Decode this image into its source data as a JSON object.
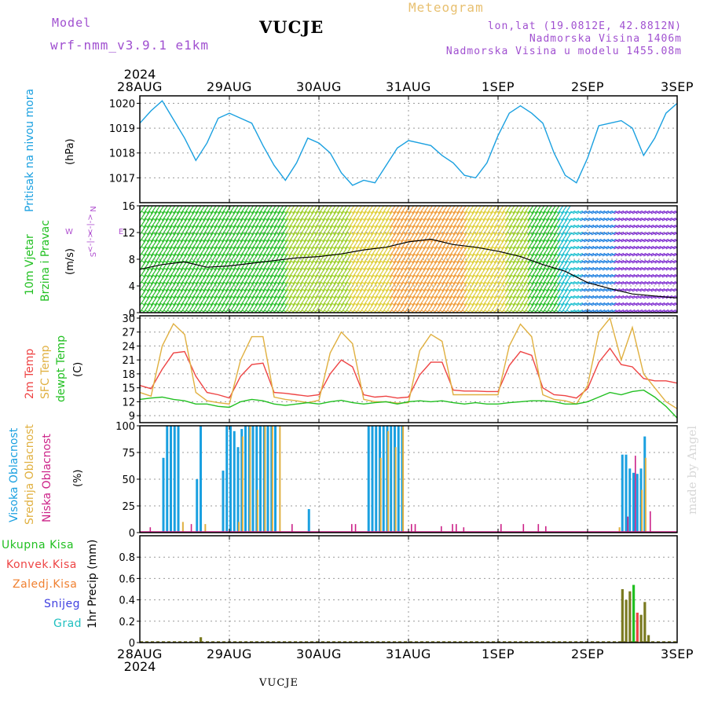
{
  "header": {
    "model_label": "Model",
    "model_name": "wrf-nmm_v3.9.1 e1km",
    "station": "VUCJE",
    "product": "Meteogram",
    "coords": "lon,lat (19.0812E, 42.8812N)",
    "elevation": "Nadmorska Visina 1406m",
    "model_elevation": "Nadmorska Visina u modelu 1455.08m",
    "credit": "made by Angel",
    "footer_station": "VUCJE"
  },
  "colors": {
    "pressure": "#1aa0e0",
    "wind_label": "#22c022",
    "temp_2m": "#ee4444",
    "sfc_temp": "#e0b040",
    "dewpoint": "#22c022",
    "high_cloud": "#1aa0e0",
    "mid_cloud": "#e0b040",
    "low_cloud": "#cc2288",
    "total_precip": "#22c022",
    "convective": "#ee4444",
    "freezing": "#f08030",
    "snow": "#4040e0",
    "hail": "#20c0c0",
    "compass": "#b050d0",
    "precip_bar": "#7a7a20"
  },
  "time_axis": {
    "year": "2024",
    "labels": [
      "28AUG",
      "29AUG",
      "30AUG",
      "31AUG",
      "1SEP",
      "2SEP",
      "3SEP"
    ],
    "hours_total": 144
  },
  "compass": {
    "n": "N",
    "s": "S",
    "e": "E",
    "w": "W",
    "top": "<-|->",
    "bottom": "<-|->"
  },
  "chart_data": [
    {
      "type": "line",
      "panel": "pressure",
      "ylabel_name": "Pritisak na nivou mora",
      "ylabel_unit": "(hPa)",
      "ylim": [
        1016.0,
        1020.3
      ],
      "yticks": [
        1017,
        1018,
        1019,
        1020
      ],
      "grid": true,
      "series": [
        {
          "x": [
            0,
            3,
            6,
            8,
            12,
            15,
            18,
            21,
            24,
            27,
            30,
            33,
            36,
            39,
            42,
            45,
            48,
            51,
            54,
            57,
            60,
            63,
            66,
            69,
            72,
            75,
            78,
            81,
            84,
            87,
            90,
            93,
            96,
            99,
            102,
            105,
            108,
            111,
            114,
            117,
            120,
            123,
            126,
            129,
            132,
            135,
            138,
            141,
            144
          ],
          "values": [
            1019.2,
            1019.7,
            1020.1,
            1019.6,
            1018.6,
            1017.7,
            1018.4,
            1019.4,
            1019.6,
            1019.4,
            1019.2,
            1018.3,
            1017.5,
            1016.9,
            1017.6,
            1018.6,
            1018.4,
            1018.0,
            1017.2,
            1016.7,
            1016.9,
            1016.8,
            1017.5,
            1018.2,
            1018.5,
            1018.4,
            1018.3,
            1017.9,
            1017.6,
            1017.1,
            1017.0,
            1017.6,
            1018.7,
            1019.6,
            1019.9,
            1019.6,
            1019.2,
            1018.0,
            1017.1,
            1016.8,
            1017.8,
            1019.1,
            1019.2,
            1019.3,
            1019.0,
            1017.9,
            1018.6,
            1019.6,
            1020.0
          ]
        }
      ]
    },
    {
      "type": "line",
      "panel": "wind",
      "ylabel_name": "10m Vjetar Brzina i Pravac",
      "ylabel_name_line1": "10m Vjetar",
      "ylabel_name_line2": "Brzina i Pravac",
      "ylabel_unit": "(m/s)",
      "ylim": [
        0,
        16
      ],
      "yticks": [
        0,
        4,
        8,
        12,
        16
      ],
      "grid": true,
      "series": [
        {
          "x": [
            0,
            6,
            12,
            18,
            24,
            30,
            36,
            42,
            48,
            54,
            60,
            66,
            72,
            78,
            84,
            90,
            96,
            102,
            108,
            114,
            120,
            126,
            132,
            138,
            144
          ],
          "values": [
            6.5,
            7.2,
            7.6,
            6.8,
            7.0,
            7.4,
            7.8,
            8.2,
            8.4,
            8.8,
            9.4,
            9.8,
            10.6,
            11.0,
            10.2,
            9.8,
            9.2,
            8.4,
            7.2,
            6.2,
            4.5,
            3.6,
            2.8,
            2.5,
            2.2
          ]
        }
      ]
    },
    {
      "type": "line",
      "panel": "temperature",
      "ylabel_2m": "2m Temp",
      "ylabel_sfc": "SFC Temp",
      "ylabel_dew": "dewpt Temp",
      "ylabel_unit": "(C)",
      "ylim": [
        7.5,
        30.5
      ],
      "yticks": [
        9,
        12,
        15,
        18,
        21,
        24,
        27,
        30
      ],
      "grid": true,
      "series": [
        {
          "name": "2m Temp",
          "x": [
            0,
            3,
            6,
            9,
            12,
            15,
            18,
            21,
            24,
            27,
            30,
            33,
            36,
            39,
            42,
            45,
            48,
            51,
            54,
            57,
            60,
            63,
            66,
            69,
            72,
            75,
            78,
            81,
            84,
            87,
            90,
            93,
            96,
            99,
            102,
            105,
            108,
            111,
            114,
            117,
            120,
            123,
            126,
            129,
            132,
            135,
            138,
            141,
            144
          ],
          "values": [
            15.5,
            14.8,
            19,
            22.5,
            22.8,
            17.5,
            14,
            13.5,
            12.8,
            17.5,
            20,
            20.3,
            14,
            13.8,
            13.5,
            13.2,
            13.5,
            18,
            21,
            19.5,
            13.5,
            13,
            13.2,
            12.8,
            13,
            17.8,
            20.5,
            20.5,
            14.5,
            14.3,
            14.3,
            14.2,
            14.2,
            19.8,
            22.8,
            22,
            15,
            13.5,
            13.3,
            12.8,
            14.8,
            20.5,
            23.5,
            20,
            19.5,
            17,
            16.5,
            16.5,
            16
          ]
        },
        {
          "name": "SFC Temp",
          "x": [
            0,
            3,
            6,
            9,
            12,
            15,
            18,
            21,
            24,
            27,
            30,
            33,
            36,
            39,
            42,
            45,
            48,
            51,
            54,
            57,
            60,
            63,
            66,
            69,
            72,
            75,
            78,
            81,
            84,
            87,
            90,
            93,
            96,
            99,
            102,
            105,
            108,
            111,
            114,
            117,
            120,
            123,
            126,
            129,
            132,
            135,
            138,
            141,
            144
          ],
          "values": [
            14,
            13.2,
            24,
            28.8,
            26.5,
            14,
            12.2,
            11.8,
            11.5,
            21,
            26,
            26,
            13,
            12.5,
            12.2,
            11.8,
            12.3,
            22.5,
            27,
            24.5,
            12.5,
            12,
            12,
            11.7,
            11.8,
            23,
            26.5,
            25,
            13.5,
            13.5,
            13.5,
            13.5,
            13.5,
            24,
            28.7,
            26,
            13.5,
            12.5,
            12.2,
            11.5,
            15.5,
            27,
            30,
            21,
            28,
            18,
            15,
            12,
            10.5
          ]
        },
        {
          "name": "dewpt Temp",
          "x": [
            0,
            3,
            6,
            9,
            12,
            15,
            18,
            21,
            24,
            27,
            30,
            33,
            36,
            39,
            42,
            45,
            48,
            51,
            54,
            57,
            60,
            63,
            66,
            69,
            72,
            75,
            78,
            81,
            84,
            87,
            90,
            93,
            96,
            99,
            102,
            105,
            108,
            111,
            114,
            117,
            120,
            123,
            126,
            129,
            132,
            135,
            138,
            141,
            144
          ],
          "values": [
            12.5,
            12.8,
            13,
            12.5,
            12.2,
            11.5,
            11.5,
            11,
            10.8,
            12,
            12.5,
            12.2,
            11.5,
            11.2,
            11.5,
            11.8,
            11.5,
            12,
            12.3,
            11.8,
            11.5,
            11.8,
            12,
            11.5,
            12,
            12.2,
            12,
            12.2,
            11.8,
            11.5,
            11.8,
            11.5,
            11.5,
            11.8,
            12,
            12.2,
            12.2,
            12,
            11.5,
            11.5,
            12,
            13,
            14,
            13.5,
            14.2,
            14.5,
            13,
            11,
            8.5
          ]
        }
      ]
    },
    {
      "type": "bar",
      "panel": "cloud",
      "ylabel_high": "Visoka Oblacnost",
      "ylabel_mid": "Srednja Oblacnost",
      "ylabel_low": "Niska Oblacnost",
      "ylabel_unit": "(%)",
      "ylim": [
        0,
        100
      ],
      "yticks": [
        0,
        25,
        50,
        75,
        100
      ],
      "grid": true,
      "series": [
        {
          "name": "Visoka Oblacnost",
          "x": [
            6,
            7,
            8,
            9,
            10,
            15,
            16,
            22,
            23,
            24,
            25,
            26,
            27,
            28,
            29,
            30,
            31,
            32,
            33,
            34,
            35,
            36,
            45,
            61,
            62,
            63,
            64,
            65,
            66,
            67,
            68,
            69,
            70,
            129,
            130,
            131,
            132,
            133,
            134,
            135
          ],
          "values": [
            70,
            100,
            100,
            100,
            100,
            50,
            100,
            58,
            100,
            100,
            95,
            80,
            97,
            100,
            100,
            100,
            100,
            100,
            100,
            100,
            100,
            100,
            22,
            100,
            100,
            100,
            100,
            100,
            100,
            100,
            100,
            100,
            100,
            73,
            73,
            60,
            56,
            55,
            60,
            90
          ]
        },
        {
          "name": "Srednja Oblacnost",
          "x": [
            11,
            17,
            26,
            27,
            29,
            31,
            33,
            35,
            37,
            64,
            66,
            68,
            70,
            128,
            134,
            135
          ],
          "values": [
            10,
            8,
            10,
            90,
            100,
            40,
            100,
            100,
            100,
            70,
            95,
            80,
            100,
            5,
            40,
            70
          ]
        },
        {
          "name": "Niska Oblacnost",
          "x": [
            2,
            13,
            40,
            56,
            57,
            72,
            73,
            80,
            83,
            84,
            86,
            96,
            102,
            106,
            108,
            130,
            132,
            136
          ],
          "values": [
            5,
            8,
            8,
            8,
            8,
            8,
            8,
            6,
            8,
            8,
            5,
            8,
            8,
            8,
            6,
            15,
            72,
            20
          ]
        }
      ]
    },
    {
      "type": "bar",
      "panel": "precip",
      "ylabel_unit": "1hr Precip (mm)",
      "ylim": [
        0,
        1.0
      ],
      "yticks": [
        0,
        0.2,
        0.4,
        0.6,
        0.8
      ],
      "grid": true,
      "legend": [
        "Ukupna Kisa",
        "Konvek.Kisa",
        "Zaledj.Kisa",
        "Snijeg",
        "Grad"
      ],
      "series": [
        {
          "name": "Ukupna Kisa",
          "x": [
            16,
            35,
            129,
            130,
            131,
            132,
            133,
            134,
            135,
            136
          ],
          "values": [
            0.05,
            0.005,
            0.5,
            0.4,
            0.48,
            0.54,
            0.28,
            0.26,
            0.38,
            0.07
          ]
        }
      ]
    }
  ]
}
